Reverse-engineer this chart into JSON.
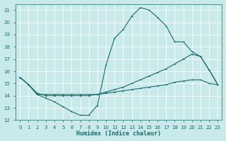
{
  "xlabel": "Humidex (Indice chaleur)",
  "bg_color": "#c8eaea",
  "grid_color": "#b0d8d8",
  "line_color": "#1a6b6b",
  "xlim": [
    -0.5,
    23.5
  ],
  "ylim": [
    12,
    21.5
  ],
  "xticks": [
    0,
    1,
    2,
    3,
    4,
    5,
    6,
    7,
    8,
    9,
    10,
    11,
    12,
    13,
    14,
    15,
    16,
    17,
    18,
    19,
    20,
    21,
    22,
    23
  ],
  "yticks": [
    12,
    13,
    14,
    15,
    16,
    17,
    18,
    19,
    20,
    21
  ],
  "line1_y": [
    15.5,
    14.9,
    14.1,
    13.8,
    13.5,
    13.1,
    12.7,
    12.4,
    12.4,
    13.2,
    16.5,
    18.7,
    19.4,
    20.5,
    21.2,
    21.0,
    20.4,
    19.7,
    18.4,
    18.4,
    17.6,
    17.2,
    16.1,
    14.9
  ],
  "line2_y": [
    15.5,
    14.9,
    14.2,
    14.0,
    14.0,
    14.0,
    14.0,
    14.0,
    14.0,
    14.1,
    14.3,
    14.5,
    14.7,
    15.0,
    15.3,
    15.6,
    15.9,
    16.2,
    16.6,
    17.0,
    17.4,
    17.2,
    16.1,
    14.9
  ],
  "line3_y": [
    15.5,
    14.9,
    14.1,
    14.1,
    14.1,
    14.1,
    14.1,
    14.1,
    14.1,
    14.1,
    14.2,
    14.3,
    14.4,
    14.5,
    14.6,
    14.7,
    14.8,
    14.9,
    15.1,
    15.2,
    15.3,
    15.3,
    15.0,
    14.9
  ],
  "xlabel_fontsize": 6,
  "tick_fontsize": 5,
  "line_width": 0.8,
  "marker_size": 2.0
}
